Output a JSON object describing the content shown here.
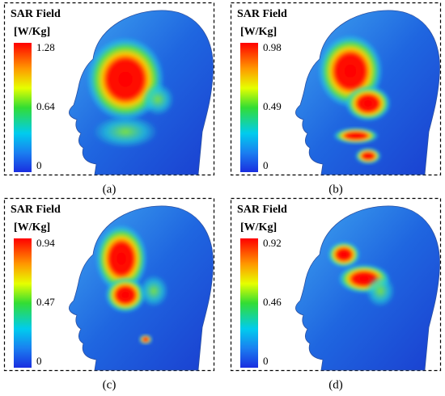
{
  "panels": [
    {
      "title": "SAR Field",
      "unit": "[W/Kg]",
      "scale": [
        "1.28",
        "0.64",
        "0"
      ],
      "caption": "(a)"
    },
    {
      "title": "SAR Field",
      "unit": "[W/Kg]",
      "scale": [
        "0.98",
        "0.49",
        "0"
      ],
      "caption": "(b)"
    },
    {
      "title": "SAR Field",
      "unit": "[W/Kg]",
      "scale": [
        "0.94",
        "0.47",
        "0"
      ],
      "caption": "(c)"
    },
    {
      "title": "SAR Field",
      "unit": "[W/Kg]",
      "scale": [
        "0.92",
        "0.46",
        "0"
      ],
      "caption": "(d)"
    }
  ]
}
